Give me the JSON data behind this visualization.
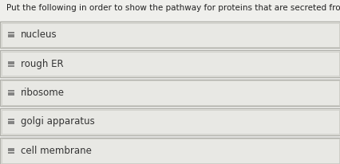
{
  "title": "Put the following in order to show the pathway for proteins that are secreted from the cell.",
  "items": [
    "nucleus",
    "rough ER",
    "ribosome",
    "golgi apparatus",
    "cell membrane"
  ],
  "title_fontsize": 7.5,
  "item_fontsize": 8.5,
  "bg_color": "#efefec",
  "box_face_color": "#e8e8e4",
  "border_color_outer": "#b0b0aa",
  "border_color_inner": "#c8c8c2",
  "text_color": "#333333",
  "icon_color": "#666666",
  "title_color": "#222222",
  "title_bg": "#efefec"
}
